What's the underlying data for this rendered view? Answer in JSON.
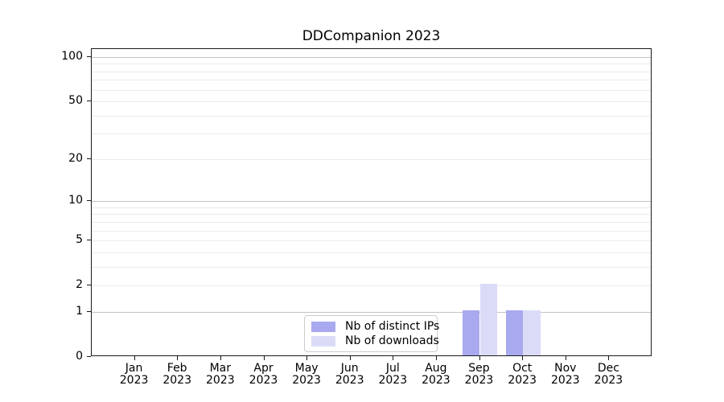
{
  "title": "DDCompanion 2023",
  "chart_data": {
    "type": "bar",
    "title": "DDCompanion 2023",
    "categories": [
      "Jan",
      "Feb",
      "Mar",
      "Apr",
      "May",
      "Jun",
      "Jul",
      "Aug",
      "Sep",
      "Oct",
      "Nov",
      "Dec"
    ],
    "category_year": "2023",
    "series": [
      {
        "name": "Nb of distinct IPs",
        "color": "#a9a9f0",
        "values": [
          0,
          0,
          0,
          0,
          0,
          0,
          0,
          0,
          1,
          1,
          0,
          0
        ]
      },
      {
        "name": "Nb of downloads",
        "color": "#dbdbf8",
        "values": [
          0,
          0,
          0,
          0,
          0,
          0,
          0,
          0,
          2,
          1,
          0,
          0
        ]
      }
    ],
    "y_axis": {
      "scale": "log1p",
      "ticks": [
        0,
        1,
        2,
        5,
        10,
        20,
        50,
        100
      ],
      "max": 113,
      "major_grid": [
        1,
        10,
        100
      ],
      "minor_grid": [
        2,
        3,
        4,
        5,
        6,
        7,
        8,
        9,
        20,
        30,
        40,
        50,
        60,
        70,
        80,
        90
      ]
    },
    "x_axis": {
      "label": ""
    },
    "legend": {
      "position": "lower center"
    },
    "grid": true,
    "colors": {
      "major_grid": "#c3c3c3",
      "minor_grid": "#ebebeb",
      "spine": "#1a1a1a"
    }
  }
}
